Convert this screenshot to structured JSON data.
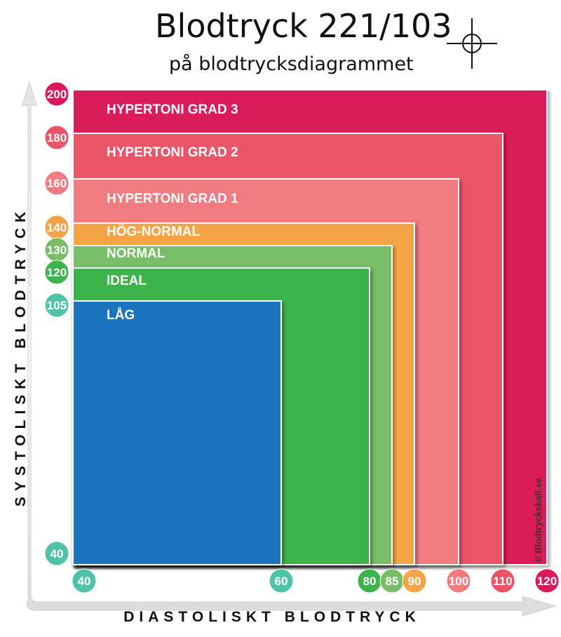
{
  "title": "Blodtryck 221/103",
  "subtitle": "på blodtrycksdiagrammet",
  "chart_data": {
    "type": "nested-rectangles",
    "title": "Blodtryck 221/103",
    "subtitle": "på blodtrycksdiagrammet",
    "xlabel": "DIASTOLISKT BLODTRYCK",
    "ylabel": "SYSTOLISKT BLODTRYCK",
    "xlim": [
      40,
      120
    ],
    "ylim": [
      40,
      200
    ],
    "origin": [
      40,
      40
    ],
    "marker": {
      "systolic": 221,
      "diastolic": 103
    },
    "zones": [
      {
        "label": "HYPERTONI GRAD 3",
        "systolic_max": 200,
        "diastolic_max": 120,
        "color": "#da1b5a"
      },
      {
        "label": "HYPERTONI GRAD 2",
        "systolic_max": 180,
        "diastolic_max": 110,
        "color": "#eb5468"
      },
      {
        "label": "HYPERTONI GRAD 1",
        "systolic_max": 160,
        "diastolic_max": 100,
        "color": "#f07c82"
      },
      {
        "label": "HÖG-NORMAL",
        "systolic_max": 140,
        "diastolic_max": 90,
        "color": "#f5a347"
      },
      {
        "label": "NORMAL",
        "systolic_max": 130,
        "diastolic_max": 85,
        "color": "#79bd67"
      },
      {
        "label": "IDEAL",
        "systolic_max": 120,
        "diastolic_max": 80,
        "color": "#3cb34b"
      },
      {
        "label": "LÅG",
        "systolic_max": 105,
        "diastolic_max": 60,
        "color": "#1d75bc"
      }
    ],
    "y_ticks": [
      {
        "label": "200",
        "value": 200,
        "color": "#da1b5a"
      },
      {
        "label": "180",
        "value": 180,
        "color": "#eb5468"
      },
      {
        "label": "160",
        "value": 160,
        "color": "#f07c82"
      },
      {
        "label": "140",
        "value": 140,
        "color": "#f5a347"
      },
      {
        "label": "130",
        "value": 130,
        "color": "#79bd67"
      },
      {
        "label": "120",
        "value": 120,
        "color": "#3cb34b"
      },
      {
        "label": "105",
        "value": 105,
        "color": "#4fc3a9"
      },
      {
        "label": "40",
        "value": 40,
        "color": "#4fc3a9"
      }
    ],
    "x_ticks": [
      {
        "label": "40",
        "value": 40,
        "color": "#4fc3a9"
      },
      {
        "label": "60",
        "value": 60,
        "color": "#4fc3a9"
      },
      {
        "label": "80",
        "value": 80,
        "color": "#3cb34b"
      },
      {
        "label": "85",
        "value": 85,
        "color": "#79bd67"
      },
      {
        "label": "90",
        "value": 90,
        "color": "#f5a347"
      },
      {
        "label": "100",
        "value": 100,
        "color": "#f07c82"
      },
      {
        "label": "110",
        "value": 110,
        "color": "#eb5468"
      },
      {
        "label": "120",
        "value": 120,
        "color": "#da1b5a"
      }
    ],
    "copyright": "© Blodtryckskoll.se"
  }
}
